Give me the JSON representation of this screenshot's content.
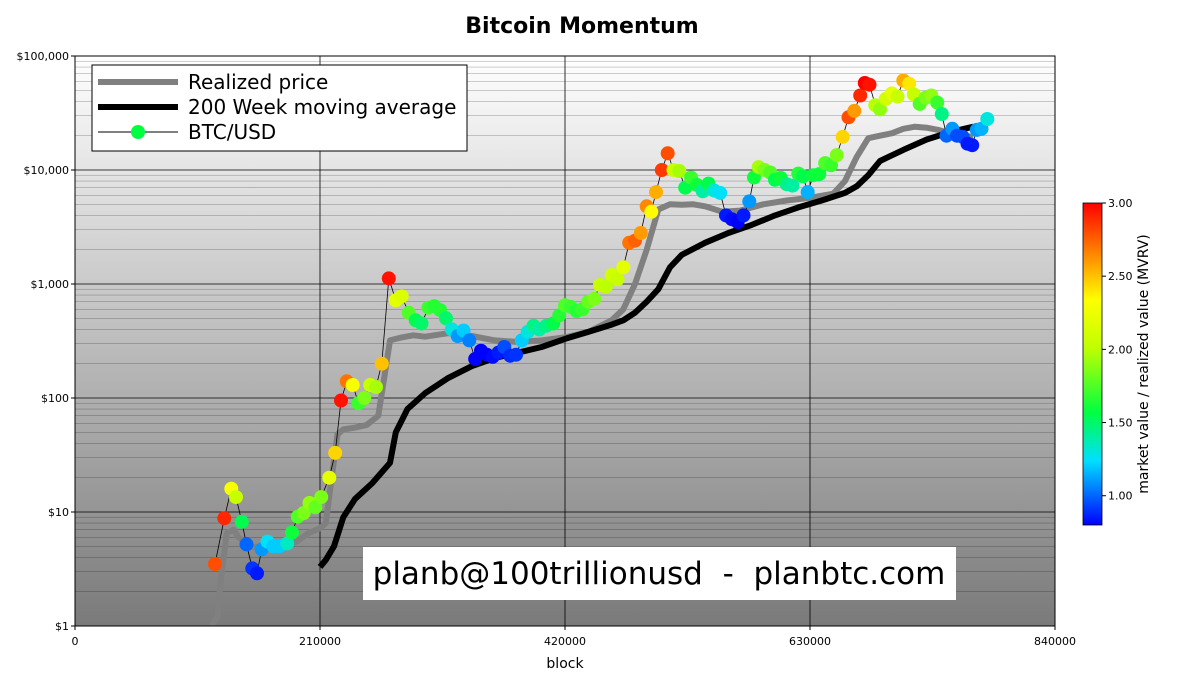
{
  "chart_data": {
    "type": "scatter",
    "title": "Bitcoin Momentum",
    "xlabel": "block",
    "ylabel": "",
    "xlim": [
      0,
      840000
    ],
    "ylim": [
      1,
      100000
    ],
    "yscale": "log",
    "grid": true,
    "legend_position": "top-left",
    "x_ticks": [
      0,
      210000,
      420000,
      630000,
      840000
    ],
    "x_tick_labels": [
      "0",
      "210000",
      "420000",
      "630000",
      "840000"
    ],
    "y_ticks": [
      1,
      10,
      100,
      1000,
      10000,
      100000
    ],
    "y_tick_labels": [
      "$1",
      "$10",
      "$100",
      "$1,000",
      "$10,000",
      "$100,000"
    ],
    "colorbar": {
      "label": "market value / realized value (MVRV)",
      "min": 0.8,
      "max": 3.0,
      "ticks": [
        1.0,
        1.5,
        2.0,
        2.5,
        3.0
      ],
      "tick_labels": [
        "1.00",
        "1.50",
        "2.00",
        "2.50",
        "3.00"
      ]
    },
    "watermark": "planb@100trillionusd  -  planbtc.com",
    "series": [
      {
        "name": "Realized price",
        "kind": "line",
        "color": "#808080",
        "points": [
          [
            117000,
            1
          ],
          [
            122000,
            1.2
          ],
          [
            125000,
            2.5
          ],
          [
            130000,
            6.5
          ],
          [
            136000,
            7
          ],
          [
            140000,
            6
          ],
          [
            150000,
            5
          ],
          [
            160000,
            4.8
          ],
          [
            175000,
            4.8
          ],
          [
            190000,
            5.5
          ],
          [
            200000,
            6.5
          ],
          [
            210000,
            7.2
          ],
          [
            215000,
            8
          ],
          [
            220000,
            20
          ],
          [
            225000,
            48
          ],
          [
            230000,
            53
          ],
          [
            240000,
            55
          ],
          [
            250000,
            58
          ],
          [
            260000,
            70
          ],
          [
            265000,
            150
          ],
          [
            270000,
            320
          ],
          [
            280000,
            340
          ],
          [
            290000,
            355
          ],
          [
            300000,
            345
          ],
          [
            320000,
            370
          ],
          [
            340000,
            350
          ],
          [
            360000,
            320
          ],
          [
            380000,
            310
          ],
          [
            400000,
            320
          ],
          [
            420000,
            340
          ],
          [
            440000,
            380
          ],
          [
            460000,
            480
          ],
          [
            470000,
            600
          ],
          [
            480000,
            1000
          ],
          [
            490000,
            2000
          ],
          [
            500000,
            4500
          ],
          [
            510000,
            5000
          ],
          [
            520000,
            4950
          ],
          [
            530000,
            5000
          ],
          [
            540000,
            4800
          ],
          [
            555000,
            4300
          ],
          [
            570000,
            4400
          ],
          [
            590000,
            5000
          ],
          [
            610000,
            5400
          ],
          [
            630000,
            5700
          ],
          [
            650000,
            6200
          ],
          [
            660000,
            8000
          ],
          [
            670000,
            13000
          ],
          [
            680000,
            19000
          ],
          [
            690000,
            20000
          ],
          [
            700000,
            21000
          ],
          [
            710000,
            23000
          ],
          [
            720000,
            24000
          ],
          [
            730000,
            23500
          ],
          [
            740000,
            22500
          ],
          [
            750000,
            21000
          ],
          [
            760000,
            20000
          ],
          [
            770000,
            19500
          ]
        ]
      },
      {
        "name": "200 Week moving average",
        "kind": "line",
        "color": "#000000",
        "points": [
          [
            210000,
            3.3
          ],
          [
            215000,
            3.8
          ],
          [
            222000,
            5
          ],
          [
            230000,
            9
          ],
          [
            240000,
            13
          ],
          [
            255000,
            18
          ],
          [
            270000,
            27
          ],
          [
            275000,
            50
          ],
          [
            285000,
            80
          ],
          [
            300000,
            110
          ],
          [
            320000,
            150
          ],
          [
            340000,
            190
          ],
          [
            360000,
            225
          ],
          [
            380000,
            250
          ],
          [
            400000,
            280
          ],
          [
            420000,
            330
          ],
          [
            440000,
            380
          ],
          [
            460000,
            440
          ],
          [
            470000,
            480
          ],
          [
            480000,
            560
          ],
          [
            490000,
            700
          ],
          [
            500000,
            900
          ],
          [
            510000,
            1400
          ],
          [
            520000,
            1800
          ],
          [
            540000,
            2300
          ],
          [
            560000,
            2800
          ],
          [
            580000,
            3300
          ],
          [
            600000,
            4000
          ],
          [
            620000,
            4700
          ],
          [
            640000,
            5400
          ],
          [
            660000,
            6300
          ],
          [
            670000,
            7200
          ],
          [
            680000,
            9000
          ],
          [
            690000,
            12000
          ],
          [
            710000,
            15000
          ],
          [
            730000,
            18500
          ],
          [
            750000,
            21500
          ],
          [
            770000,
            24000
          ]
        ]
      },
      {
        "name": "BTC/USD",
        "kind": "scatter",
        "color": "#00ff40",
        "points": [
          [
            120000,
            3.5,
            2.8
          ],
          [
            128000,
            8.8,
            2.9
          ],
          [
            134000,
            16,
            2.3
          ],
          [
            138000,
            13.5,
            2.05
          ],
          [
            143000,
            8.2,
            1.55
          ],
          [
            147000,
            5.2,
            1.0
          ],
          [
            152000,
            3.2,
            0.9
          ],
          [
            156000,
            2.9,
            0.85
          ],
          [
            160000,
            4.7,
            1.1
          ],
          [
            165000,
            5.5,
            1.25
          ],
          [
            170000,
            5,
            1.2
          ],
          [
            175000,
            5,
            1.2
          ],
          [
            182000,
            5.3,
            1.35
          ],
          [
            186000,
            6.6,
            1.6
          ],
          [
            191000,
            9.1,
            1.75
          ],
          [
            196000,
            9.8,
            1.85
          ],
          [
            201000,
            12,
            1.9
          ],
          [
            206000,
            11,
            1.8
          ],
          [
            211000,
            13.5,
            1.85
          ],
          [
            218000,
            20,
            2.2
          ],
          [
            223000,
            33,
            2.45
          ],
          [
            228000,
            95,
            2.95
          ],
          [
            233000,
            140,
            2.7
          ],
          [
            238000,
            130,
            2.3
          ],
          [
            243000,
            90,
            1.7
          ],
          [
            248000,
            100,
            1.85
          ],
          [
            253000,
            130,
            2.05
          ],
          [
            258000,
            125,
            1.95
          ],
          [
            263000,
            200,
            2.5
          ],
          [
            269000,
            1120,
            2.95
          ],
          [
            275000,
            720,
            2.2
          ],
          [
            280000,
            780,
            2.15
          ],
          [
            286000,
            560,
            1.75
          ],
          [
            292000,
            480,
            1.55
          ],
          [
            297000,
            450,
            1.5
          ],
          [
            303000,
            620,
            1.7
          ],
          [
            308000,
            640,
            1.65
          ],
          [
            313000,
            590,
            1.65
          ],
          [
            318000,
            500,
            1.5
          ],
          [
            323000,
            400,
            1.3
          ],
          [
            328000,
            350,
            1.1
          ],
          [
            333000,
            390,
            1.2
          ],
          [
            338000,
            320,
            1.05
          ],
          [
            343000,
            220,
            0.8
          ],
          [
            348000,
            260,
            0.8
          ],
          [
            353000,
            240,
            0.8
          ],
          [
            358000,
            230,
            0.82
          ],
          [
            363000,
            250,
            0.85
          ],
          [
            368000,
            280,
            0.95
          ],
          [
            373000,
            235,
            0.88
          ],
          [
            378000,
            240,
            0.9
          ],
          [
            383000,
            320,
            1.2
          ],
          [
            388000,
            380,
            1.3
          ],
          [
            393000,
            430,
            1.45
          ],
          [
            398000,
            400,
            1.4
          ],
          [
            404000,
            430,
            1.45
          ],
          [
            410000,
            450,
            1.55
          ],
          [
            415000,
            530,
            1.65
          ],
          [
            420000,
            650,
            1.75
          ],
          [
            425000,
            630,
            1.7
          ],
          [
            430000,
            580,
            1.65
          ],
          [
            435000,
            600,
            1.7
          ],
          [
            440000,
            700,
            1.8
          ],
          [
            445000,
            740,
            1.85
          ],
          [
            450000,
            980,
            2.05
          ],
          [
            455000,
            950,
            2.0
          ],
          [
            460000,
            1200,
            2.1
          ],
          [
            465000,
            1100,
            2.05
          ],
          [
            470000,
            1400,
            2.2
          ],
          [
            475000,
            2300,
            2.7
          ],
          [
            480000,
            2400,
            2.75
          ],
          [
            485000,
            2800,
            2.6
          ],
          [
            490000,
            4800,
            2.65
          ],
          [
            494000,
            4300,
            2.35
          ],
          [
            498000,
            6400,
            2.55
          ],
          [
            503000,
            10000,
            2.85
          ],
          [
            508000,
            14000,
            2.8
          ],
          [
            513000,
            10000,
            2.05
          ],
          [
            518000,
            9800,
            1.95
          ],
          [
            523000,
            7000,
            1.55
          ],
          [
            528000,
            8600,
            1.7
          ],
          [
            533000,
            7400,
            1.6
          ],
          [
            538000,
            6500,
            1.4
          ],
          [
            543000,
            7600,
            1.55
          ],
          [
            548000,
            6600,
            1.3
          ],
          [
            553000,
            6300,
            1.25
          ],
          [
            558000,
            4000,
            0.85
          ],
          [
            563000,
            3700,
            0.82
          ],
          [
            568000,
            3500,
            0.8
          ],
          [
            573000,
            4000,
            0.85
          ],
          [
            578000,
            5300,
            1.1
          ],
          [
            582000,
            8600,
            1.6
          ],
          [
            586000,
            10600,
            1.95
          ],
          [
            591000,
            10000,
            1.85
          ],
          [
            596000,
            9500,
            1.75
          ],
          [
            600000,
            8200,
            1.55
          ],
          [
            605000,
            8500,
            1.6
          ],
          [
            610000,
            7500,
            1.45
          ],
          [
            615000,
            7300,
            1.4
          ],
          [
            620000,
            9300,
            1.65
          ],
          [
            624000,
            8800,
            1.55
          ],
          [
            628000,
            6400,
            1.15
          ],
          [
            633000,
            9000,
            1.6
          ],
          [
            638000,
            9200,
            1.6
          ],
          [
            643000,
            11500,
            1.75
          ],
          [
            648000,
            11000,
            1.7
          ],
          [
            653000,
            13500,
            1.85
          ],
          [
            658000,
            19500,
            2.45
          ],
          [
            663000,
            29000,
            2.8
          ],
          [
            668000,
            33000,
            2.6
          ],
          [
            673000,
            45000,
            2.9
          ],
          [
            677000,
            58000,
            3.0
          ],
          [
            681000,
            56000,
            2.95
          ],
          [
            686000,
            37000,
            2.0
          ],
          [
            690000,
            34000,
            1.9
          ],
          [
            695000,
            42000,
            2.1
          ],
          [
            700000,
            47000,
            2.2
          ],
          [
            705000,
            44000,
            2.05
          ],
          [
            710000,
            61000,
            2.55
          ],
          [
            715000,
            57000,
            2.4
          ],
          [
            719000,
            46000,
            2.05
          ],
          [
            724000,
            38000,
            1.75
          ],
          [
            729000,
            43000,
            1.85
          ],
          [
            734000,
            45000,
            1.9
          ],
          [
            739000,
            39000,
            1.7
          ],
          [
            743000,
            31000,
            1.45
          ],
          [
            747000,
            20000,
            1.0
          ],
          [
            752000,
            23000,
            1.1
          ],
          [
            756000,
            20000,
            0.95
          ],
          [
            761000,
            19500,
            0.95
          ],
          [
            765000,
            17000,
            0.85
          ],
          [
            769000,
            16500,
            0.85
          ],
          [
            773000,
            22500,
            1.1
          ],
          [
            777000,
            23000,
            1.15
          ],
          [
            782000,
            28000,
            1.3
          ]
        ]
      }
    ]
  }
}
